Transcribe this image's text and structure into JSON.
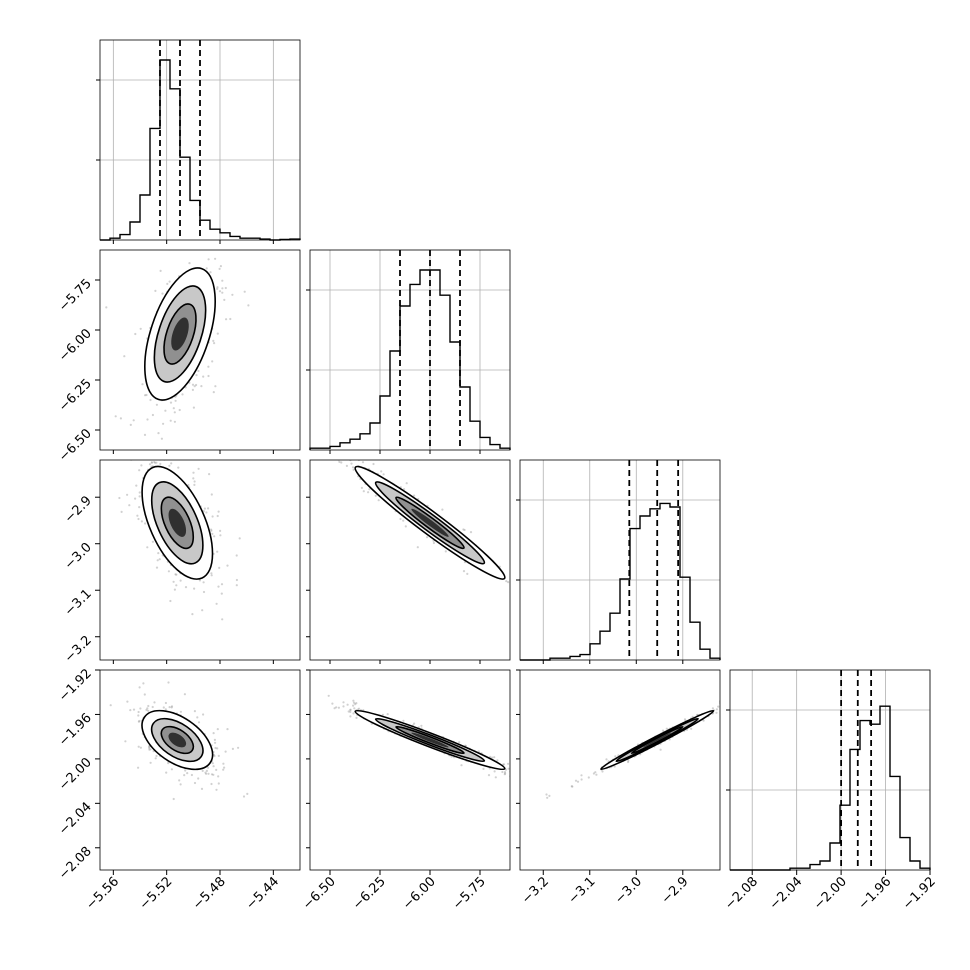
{
  "chart_data": {
    "type": "corner",
    "parameters": [
      {
        "ticks": [
          -5.56,
          -5.52,
          -5.48,
          -5.44
        ],
        "tick_labels": [
          "−5.56",
          "−5.52",
          "−5.48",
          "−5.44"
        ],
        "range": [
          -5.57,
          -5.42
        ]
      },
      {
        "ticks": [
          -6.5,
          -6.25,
          -6.0,
          -5.75
        ],
        "tick_labels": [
          "−6.50",
          "−6.25",
          "−6.00",
          "−5.75"
        ],
        "range": [
          -6.6,
          -5.6
        ]
      },
      {
        "ticks": [
          -3.2,
          -3.1,
          -3.0,
          -2.9
        ],
        "tick_labels": [
          "−3.2",
          "−3.1",
          "−3.0",
          "−2.9"
        ],
        "range": [
          -3.25,
          -2.82
        ]
      },
      {
        "ticks": [
          -2.08,
          -2.04,
          -2.0,
          -1.96,
          -1.92
        ],
        "tick_labels": [
          "−2.08",
          "−2.04",
          "−2.00",
          "−1.96",
          "−1.92"
        ],
        "range": [
          -2.1,
          -1.92
        ]
      }
    ],
    "histograms": [
      {
        "values": [
          0,
          1,
          3,
          10,
          25,
          62,
          100,
          84,
          46,
          22,
          11,
          6,
          4,
          2,
          1,
          1,
          0.5,
          0,
          0.3,
          0.5
        ],
        "quantiles": [
          -5.525,
          -5.51,
          -5.495
        ]
      },
      {
        "values": [
          1,
          1,
          2,
          4,
          6,
          9,
          15,
          30,
          55,
          80,
          92,
          100,
          100,
          86,
          60,
          35,
          16,
          7,
          3,
          1
        ],
        "quantiles": [
          -6.15,
          -6.0,
          -5.85
        ]
      },
      {
        "values": [
          0,
          0,
          0,
          1,
          1,
          2,
          3,
          9,
          16,
          26,
          45,
          73,
          80,
          84,
          87,
          85,
          46,
          21,
          6,
          1
        ],
        "quantiles": [
          -3.015,
          -2.955,
          -2.91
        ]
      },
      {
        "values": [
          0,
          0,
          0,
          0,
          0,
          0,
          1,
          1,
          3,
          5,
          15,
          36,
          67,
          83,
          81,
          91,
          52,
          18,
          5,
          1
        ],
        "quantiles": [
          -2.0,
          -1.985,
          -1.973
        ]
      }
    ],
    "pairs": [
      {
        "x": 0,
        "y": 1,
        "center": [
          -5.51,
          -6.02
        ],
        "sd": [
          0.012,
          0.15
        ],
        "rho": 0.5,
        "contours_sigma": [
          1,
          1.6,
          2.2
        ]
      },
      {
        "x": 0,
        "y": 2,
        "center": [
          -5.512,
          -2.955
        ],
        "sd": [
          0.012,
          0.055
        ],
        "rho": -0.55,
        "contours_sigma": [
          1,
          1.6,
          2.2
        ]
      },
      {
        "x": 1,
        "y": 2,
        "center": [
          -6.0,
          -2.955
        ],
        "sd": [
          0.17,
          0.055
        ],
        "rho": -0.97,
        "contours_sigma": [
          1,
          1.6,
          2.2
        ]
      },
      {
        "x": 0,
        "y": 3,
        "center": [
          -5.512,
          -1.983
        ],
        "sd": [
          0.012,
          0.012
        ],
        "rho": -0.5,
        "contours_sigma": [
          1,
          1.6,
          2.2
        ]
      },
      {
        "x": 1,
        "y": 3,
        "center": [
          -6.0,
          -1.983
        ],
        "sd": [
          0.17,
          0.012
        ],
        "rho": -0.97,
        "contours_sigma": [
          1,
          1.6,
          2.2
        ]
      },
      {
        "x": 2,
        "y": 3,
        "center": [
          -2.955,
          -1.983
        ],
        "sd": [
          0.055,
          0.012
        ],
        "rho": 0.99,
        "contours_sigma": [
          1,
          1.6,
          2.2
        ]
      }
    ],
    "grid": true,
    "colors": {
      "line": "#000000",
      "grid": "#b0b0b0",
      "points": "#9a9a9a"
    }
  }
}
